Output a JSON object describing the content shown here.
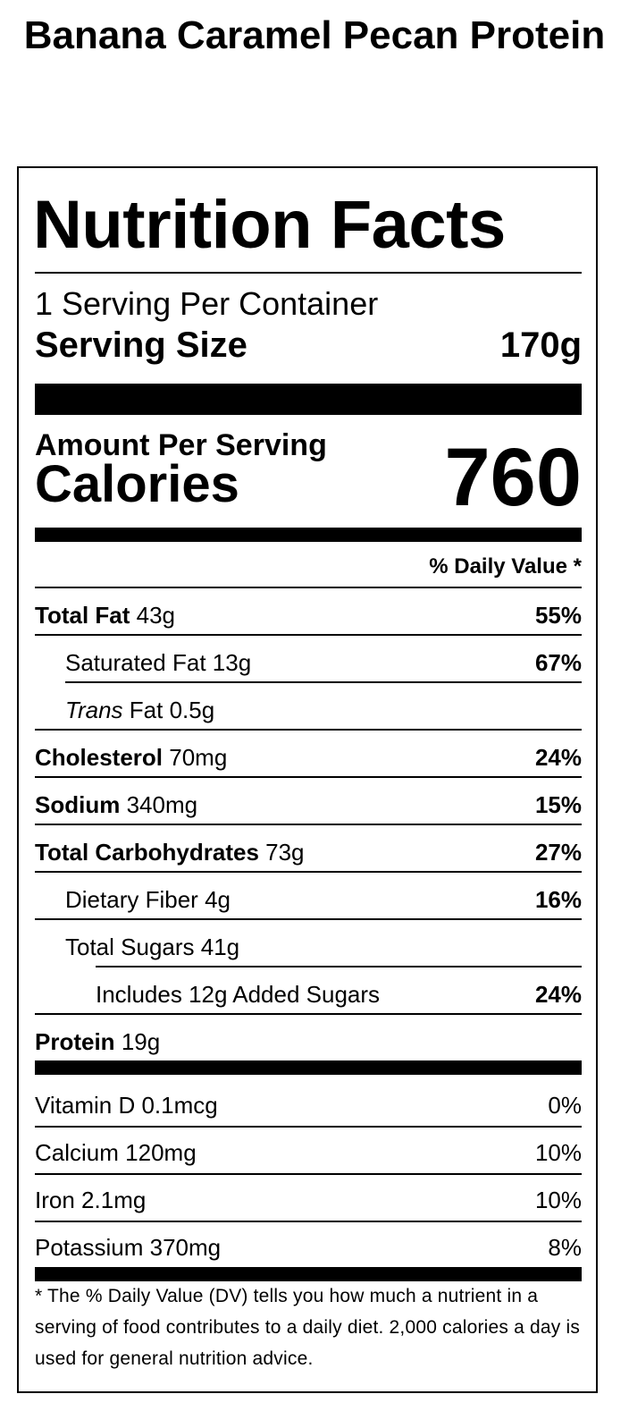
{
  "product": {
    "title": "Banana Caramel Pecan Protein"
  },
  "label": {
    "heading": "Nutrition Facts",
    "servings_per_container": "1 Serving Per Container",
    "serving_size_label": "Serving Size",
    "serving_size_value": "170g",
    "amount_per_serving": "Amount Per Serving",
    "calories_label": "Calories",
    "calories_value": "760",
    "daily_value_header": "% Daily Value *",
    "nutrients": [
      {
        "name": "Total Fat",
        "amount": "43g",
        "dv": "55%"
      },
      {
        "name": "Saturated Fat",
        "amount": "13g",
        "dv": "67%"
      },
      {
        "name_italic": "Trans",
        "name": "Fat",
        "amount": "0.5g",
        "dv": ""
      },
      {
        "name": "Cholesterol",
        "amount": "70mg",
        "dv": "24%"
      },
      {
        "name": "Sodium",
        "amount": "340mg",
        "dv": "15%"
      },
      {
        "name": "Total Carbohydrates",
        "amount": "73g",
        "dv": "27%"
      },
      {
        "name": "Dietary Fiber",
        "amount": "4g",
        "dv": "16%"
      },
      {
        "name": "Total Sugars",
        "amount": "41g",
        "dv": ""
      },
      {
        "name": "Includes 12g Added Sugars",
        "amount": "",
        "dv": "24%"
      },
      {
        "name": "Protein",
        "amount": "19g",
        "dv": ""
      }
    ],
    "vitamins": [
      {
        "name": "Vitamin D",
        "amount": "0.1mcg",
        "dv": "0%"
      },
      {
        "name": "Calcium",
        "amount": "120mg",
        "dv": "10%"
      },
      {
        "name": "Iron",
        "amount": "2.1mg",
        "dv": "10%"
      },
      {
        "name": "Potassium",
        "amount": "370mg",
        "dv": "8%"
      }
    ],
    "footnote": "* The % Daily Value (DV) tells you how much a nutrient in a serving of food contributes to a daily diet. 2,000 calories a day is used for general nutrition advice."
  }
}
